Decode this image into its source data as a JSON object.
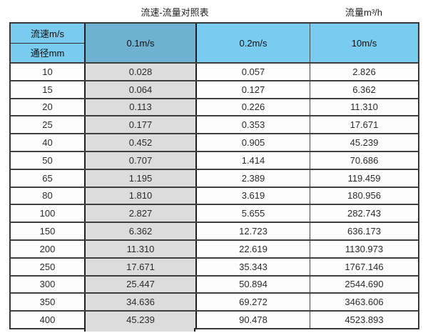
{
  "chart_data": {
    "type": "table",
    "title": "流速-流量对照表",
    "unit_label": "流量m³/h",
    "header": {
      "corner_top": "流速m/s",
      "corner_bottom": "通径mm",
      "velocity_columns": [
        "0.1m/s",
        "0.2m/s",
        "10m/s"
      ]
    },
    "rows": [
      {
        "diameter": "10",
        "values": [
          "0.028",
          "0.057",
          "2.826"
        ]
      },
      {
        "diameter": "15",
        "values": [
          "0.064",
          "0.127",
          "6.362"
        ]
      },
      {
        "diameter": "20",
        "values": [
          "0.113",
          "0.226",
          "11.310"
        ]
      },
      {
        "diameter": "25",
        "values": [
          "0.177",
          "0.353",
          "17.671"
        ]
      },
      {
        "diameter": "40",
        "values": [
          "0.452",
          "0.905",
          "45.239"
        ]
      },
      {
        "diameter": "50",
        "values": [
          "0.707",
          "1.414",
          "70.686"
        ]
      },
      {
        "diameter": "65",
        "values": [
          "1.195",
          "2.389",
          "119.459"
        ]
      },
      {
        "diameter": "80",
        "values": [
          "1.810",
          "3.619",
          "180.956"
        ]
      },
      {
        "diameter": "100",
        "values": [
          "2.827",
          "5.655",
          "282.743"
        ]
      },
      {
        "diameter": "150",
        "values": [
          "6.362",
          "12.723",
          "636.173"
        ]
      },
      {
        "diameter": "200",
        "values": [
          "11.310",
          "22.619",
          "1130.973"
        ]
      },
      {
        "diameter": "250",
        "values": [
          "17.671",
          "35.343",
          "1767.146"
        ]
      },
      {
        "diameter": "300",
        "values": [
          "25.447",
          "50.894",
          "2544.690"
        ]
      },
      {
        "diameter": "350",
        "values": [
          "34.636",
          "69.272",
          "3463.606"
        ]
      },
      {
        "diameter": "400",
        "values": [
          "45.239",
          "90.478",
          "4523.893"
        ]
      }
    ],
    "layout_hints": {
      "highlighted_column": "0.1m/s",
      "grid": true
    }
  },
  "colors": {
    "header_blue": "#79cbef",
    "header_blue_dark": "#6fb1d0",
    "highlight_gray": "#dcdcdc",
    "border_dark": "#3f3f3f"
  }
}
